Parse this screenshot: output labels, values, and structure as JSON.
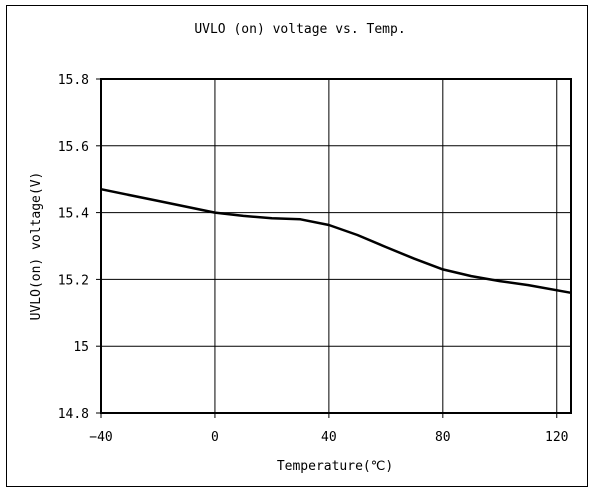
{
  "chart_data": {
    "type": "line",
    "title": "UVLO (on) voltage vs. Temp.",
    "xlabel": "Temperature(℃)",
    "ylabel": "UVLO(on) voltage(V)",
    "xlim": [
      -40,
      125
    ],
    "ylim": [
      14.8,
      15.8
    ],
    "x_ticks": [
      -40,
      0,
      40,
      80,
      120
    ],
    "x_tick_labels": [
      "−40",
      "0",
      "40",
      "80",
      "120"
    ],
    "y_ticks": [
      14.8,
      15.0,
      15.2,
      15.4,
      15.6,
      15.8
    ],
    "y_tick_labels": [
      "14.8",
      "15",
      "15.2",
      "15.4",
      "15.6",
      "15.8"
    ],
    "grid": true,
    "series": [
      {
        "x": [
          -40,
          -20,
          0,
          10,
          20,
          30,
          40,
          50,
          60,
          70,
          80,
          90,
          100,
          110,
          125
        ],
        "y": [
          15.47,
          15.435,
          15.4,
          15.39,
          15.383,
          15.38,
          15.363,
          15.333,
          15.297,
          15.262,
          15.23,
          15.21,
          15.195,
          15.183,
          15.16
        ],
        "color": "#000000"
      }
    ]
  }
}
